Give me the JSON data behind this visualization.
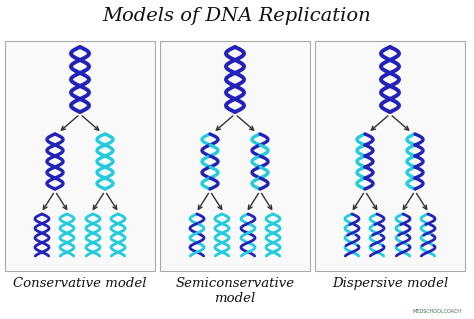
{
  "title": "Models of DNA Replication",
  "title_fontsize": 14,
  "background_color": "#ffffff",
  "models": [
    "Conservative model",
    "Semiconservative\nmodel",
    "Dispersive model"
  ],
  "dark_blue": "#2222bb",
  "medium_blue": "#4455cc",
  "cyan": "#22ccdd",
  "light_blue": "#6688ee",
  "arrow_color": "#333333",
  "label_fontsize": 9.5,
  "fig_width": 4.74,
  "fig_height": 3.19,
  "dpi": 100
}
